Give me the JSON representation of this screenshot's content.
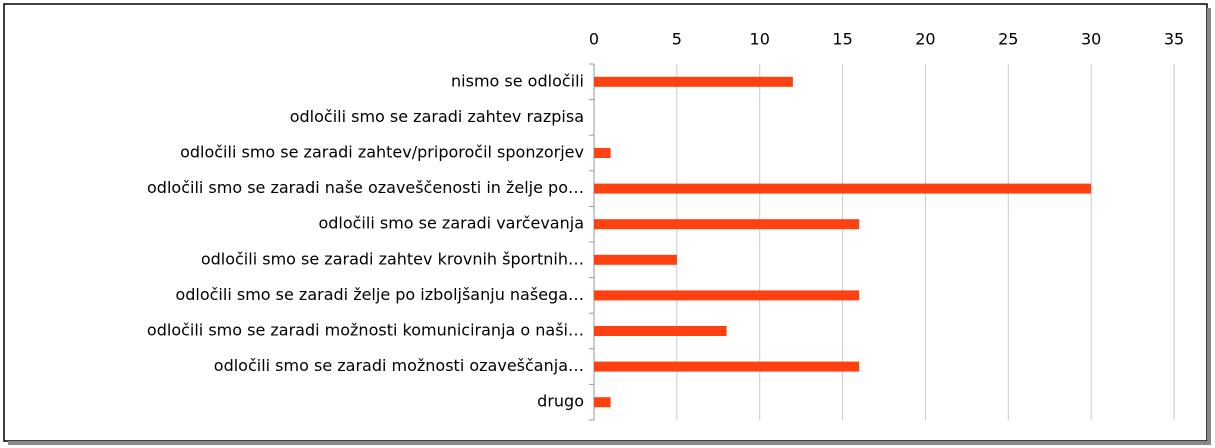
{
  "chart_data": {
    "type": "bar",
    "orientation": "horizontal",
    "categories": [
      "nismo se odločili",
      "odločili smo se zaradi zahtev razpisa",
      "odločili smo se zaradi zahtev/priporočil sponzorjev",
      "odločili smo se zaradi naše ozaveščenosti in želje po…",
      "odločili smo se zaradi varčevanja",
      "odločili smo se zaradi zahtev krovnih športnih…",
      "odločili smo se zaradi želje po izboljšanju našega…",
      "odločili smo se zaradi možnosti komuniciranja o naši…",
      "odločili smo se zaradi možnosti ozaveščanja…",
      "drugo"
    ],
    "values": [
      12,
      0,
      1,
      30,
      16,
      5,
      16,
      8,
      16,
      1
    ],
    "color": "#ff4010",
    "xlim": [
      0,
      35
    ],
    "xticks": [
      0,
      5,
      10,
      15,
      20,
      25,
      30,
      35
    ],
    "grid": true
  }
}
